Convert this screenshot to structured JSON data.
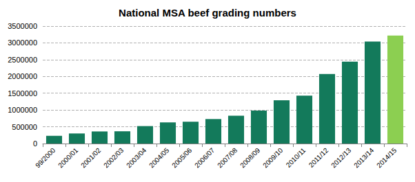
{
  "chart_data": {
    "type": "bar",
    "title": "National MSA beef grading numbers",
    "categories": [
      "99/2000",
      "2000/01",
      "2001/02",
      "2002/03",
      "2003/04",
      "2004/05",
      "2005/06",
      "2006/07",
      "2007/08",
      "2008/09",
      "2009/10",
      "2010/11",
      "2011/12",
      "2012/13",
      "2013/14",
      "2014/15"
    ],
    "values": [
      230000,
      300000,
      360000,
      365000,
      520000,
      630000,
      650000,
      730000,
      830000,
      980000,
      1290000,
      1430000,
      2070000,
      2440000,
      3040000,
      3220000
    ],
    "colors": [
      "#137a5b",
      "#137a5b",
      "#137a5b",
      "#137a5b",
      "#137a5b",
      "#137a5b",
      "#137a5b",
      "#137a5b",
      "#137a5b",
      "#137a5b",
      "#137a5b",
      "#137a5b",
      "#137a5b",
      "#137a5b",
      "#137a5b",
      "#8ccf51"
    ],
    "ylim": [
      0,
      3500000
    ],
    "yticks": [
      0,
      500000,
      1000000,
      1500000,
      2000000,
      2500000,
      3000000,
      3500000
    ],
    "grid": true
  }
}
